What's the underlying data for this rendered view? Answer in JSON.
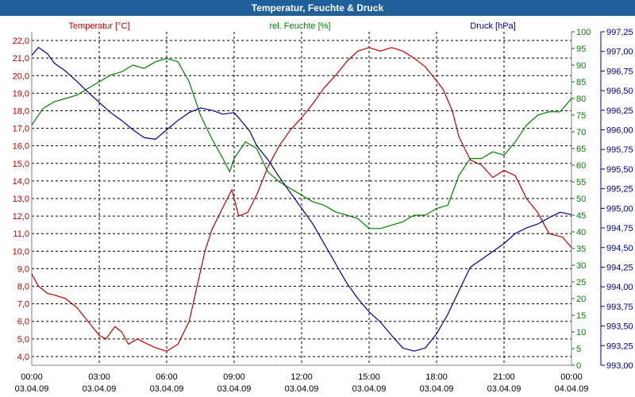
{
  "window": {
    "title": "Temperatur, Feuchte & Druck"
  },
  "chart_data": {
    "type": "line",
    "title": "Temperatur, Feuchte & Druck",
    "xlabel": "",
    "x_unit": "hours since 03.04.09 00:00",
    "xlim": [
      0,
      24
    ],
    "grid": true,
    "x_ticks": [
      {
        "x": 0,
        "time": "00:00",
        "date": "03.04.09"
      },
      {
        "x": 3,
        "time": "03:00",
        "date": "03.04.09"
      },
      {
        "x": 6,
        "time": "06:00",
        "date": "03.04.09"
      },
      {
        "x": 9,
        "time": "09:00",
        "date": "03.04.09"
      },
      {
        "x": 12,
        "time": "12:00",
        "date": "03.04.09"
      },
      {
        "x": 15,
        "time": "15:00",
        "date": "03.04.09"
      },
      {
        "x": 18,
        "time": "18:00",
        "date": "03.04.09"
      },
      {
        "x": 21,
        "time": "21:00",
        "date": "03.04.09"
      },
      {
        "x": 24,
        "time": "00:00",
        "date": "04.04.09"
      }
    ],
    "axes": {
      "temperature": {
        "label": "Temperatur [°C]",
        "color": "#c00000",
        "ylim": [
          3.5,
          22.5
        ],
        "ticks": [
          "4,0",
          "5,0",
          "6,0",
          "7,0",
          "8,0",
          "9,0",
          "10,0",
          "11,0",
          "12,0",
          "13,0",
          "14,0",
          "15,0",
          "16,0",
          "17,0",
          "18,0",
          "19,0",
          "20,0",
          "21,0",
          "22,0"
        ]
      },
      "humidity": {
        "label": "rel. Feuchte [%]",
        "color": "#008000",
        "ylim": [
          0,
          100
        ],
        "ticks": [
          "0",
          "5",
          "10",
          "15",
          "20",
          "25",
          "30",
          "35",
          "40",
          "45",
          "50",
          "55",
          "60",
          "65",
          "70",
          "75",
          "80",
          "85",
          "90",
          "95",
          "100"
        ]
      },
      "pressure": {
        "label": "Druck [hPa]",
        "color": "#000090",
        "ylim": [
          993.0,
          997.25
        ],
        "ticks": [
          "993,00",
          "993,25",
          "993,50",
          "993,75",
          "994,00",
          "994,25",
          "994,50",
          "994,75",
          "995,00",
          "995,25",
          "995,50",
          "995,75",
          "996,00",
          "996,25",
          "996,50",
          "996,75",
          "997,00",
          "997,25"
        ]
      }
    },
    "series": [
      {
        "name": "Temperatur",
        "axis": "temperature",
        "color": "#c00000",
        "x": [
          0,
          0.3,
          0.7,
          1.0,
          1.5,
          2.0,
          2.5,
          3.0,
          3.3,
          3.7,
          4.0,
          4.3,
          4.7,
          5.0,
          5.5,
          6.0,
          6.5,
          7.0,
          7.3,
          7.7,
          8.0,
          8.5,
          8.9,
          9.2,
          9.6,
          10.0,
          10.5,
          11.0,
          11.5,
          12.0,
          12.5,
          13.0,
          13.5,
          14.0,
          14.5,
          15.0,
          15.5,
          16.0,
          16.5,
          17.0,
          17.5,
          18.0,
          18.3,
          18.7,
          19.0,
          19.5,
          20.0,
          20.5,
          21.0,
          21.5,
          22.0,
          22.5,
          23.0,
          23.3,
          23.6,
          24.0
        ],
        "values": [
          8.7,
          8.0,
          7.6,
          7.5,
          7.3,
          6.8,
          6.0,
          5.2,
          5.0,
          5.7,
          5.4,
          4.7,
          5.0,
          4.8,
          4.5,
          4.3,
          4.7,
          6.0,
          7.7,
          10.0,
          11.2,
          12.5,
          13.5,
          12.0,
          12.2,
          13.2,
          14.8,
          16.0,
          16.9,
          17.6,
          18.4,
          19.3,
          20.0,
          20.8,
          21.4,
          21.6,
          21.4,
          21.6,
          21.4,
          21.0,
          20.5,
          19.7,
          19.2,
          18.0,
          16.5,
          15.2,
          14.9,
          14.2,
          14.6,
          14.3,
          13.0,
          12.2,
          11.0,
          10.9,
          10.8,
          10.2
        ]
      },
      {
        "name": "rel. Feuchte",
        "axis": "humidity",
        "color": "#008000",
        "x": [
          0,
          0.5,
          1.0,
          1.5,
          2.0,
          2.5,
          3.0,
          3.5,
          4.0,
          4.5,
          5.0,
          5.5,
          6.0,
          6.5,
          7.0,
          7.5,
          8.0,
          8.5,
          8.8,
          9.0,
          9.5,
          10.0,
          10.5,
          11.0,
          11.5,
          12.0,
          12.5,
          13.0,
          13.5,
          14.0,
          14.5,
          15.0,
          15.5,
          16.0,
          16.5,
          17.0,
          17.5,
          18.0,
          18.5,
          19.0,
          19.5,
          20.0,
          20.5,
          21.0,
          21.5,
          22.0,
          22.5,
          23.0,
          23.5,
          24.0
        ],
        "values": [
          72,
          77,
          79,
          80,
          81,
          83,
          85,
          87,
          88,
          90,
          89,
          91,
          92,
          91,
          85,
          75,
          68,
          62,
          58,
          62,
          67,
          65,
          58,
          55,
          53,
          51,
          49,
          48,
          46,
          45,
          44,
          41,
          41,
          42,
          43,
          45,
          45,
          47,
          48,
          57,
          62,
          62,
          64,
          63,
          67,
          72,
          75,
          76,
          76,
          80
        ]
      },
      {
        "name": "Druck",
        "axis": "pressure",
        "color": "#000090",
        "x": [
          0,
          0.3,
          0.7,
          1.0,
          1.5,
          2.0,
          2.5,
          3.0,
          3.5,
          4.0,
          4.5,
          5.0,
          5.5,
          6.0,
          6.5,
          7.0,
          7.5,
          8.0,
          8.5,
          9.0,
          9.3,
          9.7,
          10.0,
          10.5,
          11.0,
          11.5,
          12.0,
          12.5,
          13.0,
          13.5,
          14.0,
          14.5,
          15.0,
          15.5,
          16.0,
          16.5,
          17.0,
          17.5,
          18.0,
          18.5,
          19.0,
          19.5,
          20.0,
          20.5,
          21.0,
          21.5,
          22.0,
          22.5,
          23.0,
          23.5,
          24.0
        ],
        "values": [
          996.95,
          997.05,
          996.97,
          996.85,
          996.75,
          996.62,
          996.48,
          996.35,
          996.22,
          996.12,
          996.0,
          995.9,
          995.88,
          996.0,
          996.12,
          996.22,
          996.28,
          996.25,
          996.2,
          996.22,
          996.12,
          995.98,
          995.8,
          995.62,
          995.4,
          995.2,
          995.0,
          994.8,
          994.55,
          994.3,
          994.05,
          993.85,
          993.68,
          993.55,
          993.38,
          993.22,
          993.18,
          993.22,
          993.4,
          993.65,
          993.95,
          994.25,
          994.35,
          994.45,
          994.55,
          994.68,
          994.75,
          994.8,
          994.88,
          994.95,
          994.92
        ]
      }
    ]
  }
}
